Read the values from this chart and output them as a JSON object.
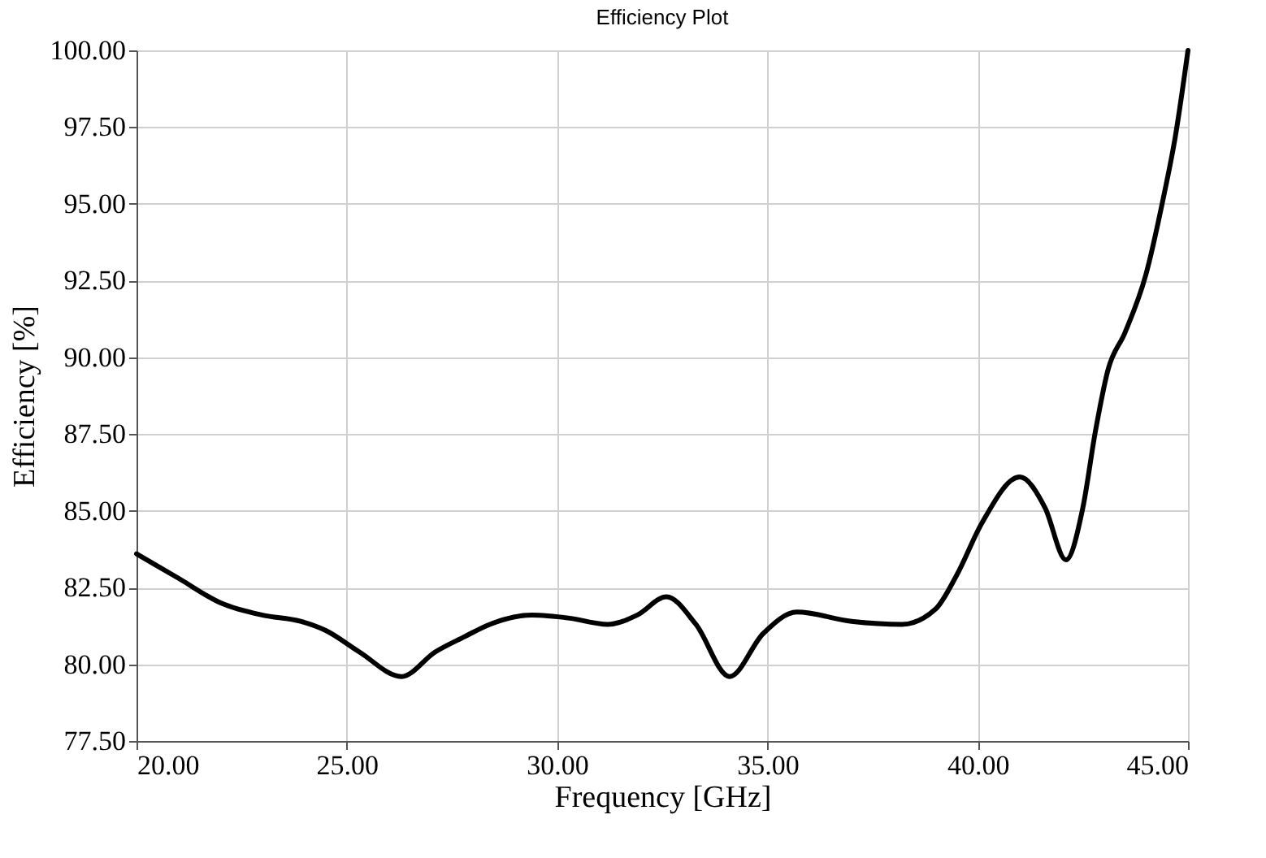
{
  "chart_data": {
    "type": "line",
    "title": "Efficiency Plot",
    "xlabel": "Frequency [GHz]",
    "ylabel": "Efficiency [%]",
    "x": [
      20.0,
      21.0,
      22.0,
      23.0,
      23.9,
      24.5,
      25.3,
      26.3,
      27.1,
      27.8,
      28.4,
      29.4,
      30.3,
      31.2,
      31.9,
      32.6,
      33.3,
      34.1,
      34.9,
      35.7,
      37.0,
      38.2,
      39.0,
      39.5,
      40.1,
      41.0,
      41.6,
      42.1,
      42.5,
      42.8,
      43.1,
      43.5,
      44.0,
      44.4,
      44.7,
      45.0
    ],
    "series": [
      {
        "color": "#000000",
        "values": [
          83.6,
          82.8,
          82.0,
          81.6,
          81.4,
          81.1,
          80.4,
          79.6,
          80.4,
          80.9,
          81.3,
          81.6,
          81.5,
          81.3,
          81.6,
          82.2,
          81.3,
          79.6,
          81.0,
          81.7,
          81.4,
          81.3,
          81.8,
          82.9,
          84.6,
          86.1,
          85.1,
          83.4,
          85.1,
          87.6,
          89.6,
          90.8,
          92.7,
          95.1,
          97.2,
          100.0
        ]
      }
    ],
    "xlim": [
      20,
      45
    ],
    "ylim": [
      77.5,
      100
    ],
    "xticks": [
      {
        "value": 20,
        "label": "20.00"
      },
      {
        "value": 25,
        "label": "25.00"
      },
      {
        "value": 30,
        "label": "30.00"
      },
      {
        "value": 35,
        "label": "35.00"
      },
      {
        "value": 40,
        "label": "40.00"
      },
      {
        "value": 45,
        "label": "45.00"
      }
    ],
    "yticks": [
      {
        "value": 77.5,
        "label": "77.50"
      },
      {
        "value": 80,
        "label": "80.00"
      },
      {
        "value": 82.5,
        "label": "82.50"
      },
      {
        "value": 85,
        "label": "85.00"
      },
      {
        "value": 87.5,
        "label": "87.50"
      },
      {
        "value": 90,
        "label": "90.00"
      },
      {
        "value": 92.5,
        "label": "92.50"
      },
      {
        "value": 95,
        "label": "95.00"
      },
      {
        "value": 97.5,
        "label": "97.50"
      },
      {
        "value": 100,
        "label": "100.00"
      }
    ],
    "grid": true,
    "marker": "none",
    "line_style": "solid"
  }
}
